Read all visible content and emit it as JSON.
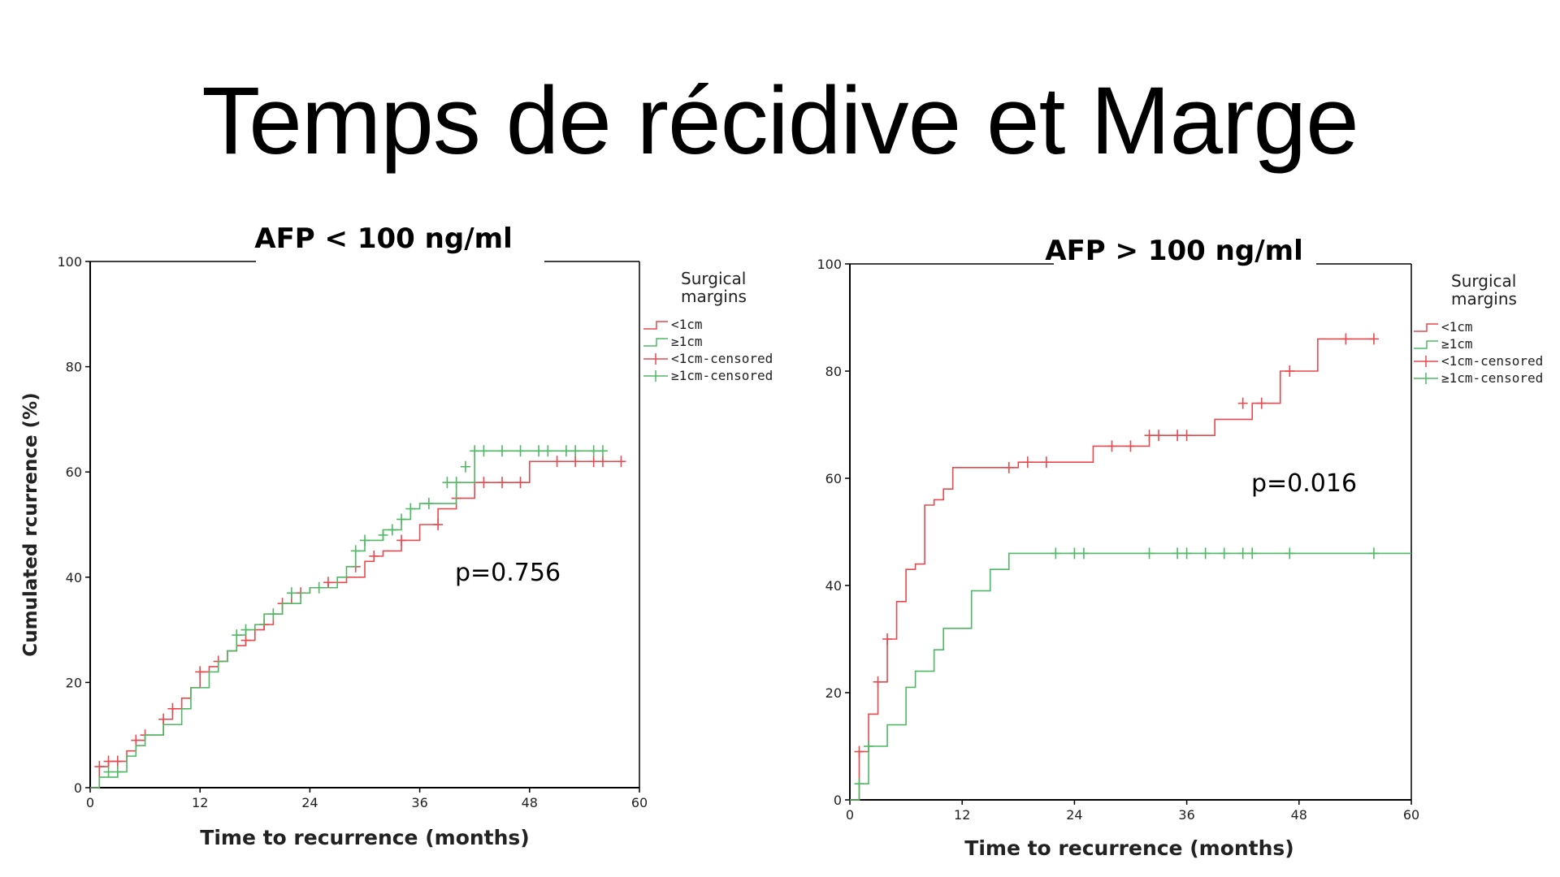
{
  "slide": {
    "title": "Temps de récidive et Marge"
  },
  "colors": {
    "lt1cm": "#e8494f",
    "ge1cm": "#4fb865",
    "axis": "#000000"
  },
  "chart_data": [
    {
      "type": "line",
      "step": true,
      "title": "AFP < 100 ng/ml",
      "xlabel": "Time to recurrence (months)",
      "ylabel": "Cumulated rcurrence (%)",
      "xlim": [
        0,
        60
      ],
      "ylim": [
        0,
        100
      ],
      "xticks": [
        0,
        12,
        24,
        36,
        48,
        60
      ],
      "yticks": [
        0,
        20,
        40,
        60,
        80,
        100
      ],
      "legend_title": "Surgical margins",
      "legend_entries": [
        "<1cm",
        "≥1cm",
        "<1cm-censored",
        "≥1cm-censored"
      ],
      "annotation": "p=0.756",
      "series": [
        {
          "name": "<1cm",
          "x": [
            0,
            1,
            2,
            4,
            5,
            6,
            8,
            9,
            10,
            11,
            12,
            13,
            14,
            15,
            16,
            17,
            18,
            19,
            20,
            21,
            22,
            23,
            24,
            26,
            28,
            30,
            31,
            32,
            34,
            36,
            38,
            40,
            42,
            48,
            58
          ],
          "y": [
            0,
            4,
            5,
            7,
            9,
            10,
            13,
            15,
            17,
            19,
            22,
            23,
            24,
            26,
            27,
            28,
            30,
            31,
            33,
            35,
            37,
            37,
            38,
            39,
            40,
            43,
            44,
            45,
            47,
            50,
            53,
            55,
            58,
            62,
            62
          ],
          "censored_x": [
            1,
            2,
            3,
            5,
            6,
            8,
            9,
            12,
            14,
            17,
            19,
            21,
            23,
            26,
            29,
            31,
            34,
            38,
            40,
            43,
            45,
            47,
            51,
            53,
            55,
            56,
            58
          ],
          "censored_y": [
            4,
            5,
            5,
            9,
            10,
            13,
            15,
            22,
            24,
            28,
            31,
            35,
            37,
            39,
            42,
            44,
            47,
            50,
            55,
            58,
            58,
            58,
            62,
            62,
            62,
            62,
            62
          ]
        },
        {
          "name": "≥1cm",
          "x": [
            0,
            1,
            3,
            4,
            5,
            6,
            8,
            10,
            11,
            13,
            14,
            15,
            16,
            17,
            18,
            19,
            21,
            23,
            24,
            27,
            28,
            29,
            30,
            32,
            34,
            35,
            36,
            38,
            40,
            42,
            56
          ],
          "y": [
            0,
            2,
            3,
            6,
            8,
            10,
            12,
            15,
            19,
            22,
            24,
            26,
            29,
            30,
            31,
            33,
            35,
            37,
            38,
            40,
            42,
            45,
            47,
            49,
            51,
            53,
            54,
            54,
            58,
            64,
            64
          ],
          "censored_x": [
            2,
            3,
            16,
            17,
            20,
            22,
            25,
            29,
            30,
            32,
            33,
            34,
            35,
            37,
            39,
            40,
            41,
            42,
            43,
            45,
            47,
            49,
            50,
            52,
            53,
            55,
            56
          ],
          "censored_y": [
            3,
            3,
            29,
            30,
            33,
            37,
            38,
            45,
            47,
            48,
            49,
            51,
            53,
            54,
            58,
            58,
            61,
            64,
            64,
            64,
            64,
            64,
            64,
            64,
            64,
            64,
            64
          ]
        }
      ]
    },
    {
      "type": "line",
      "step": true,
      "title": "AFP > 100 ng/ml",
      "xlabel": "Time to recurrence (months)",
      "ylabel": "",
      "xlim": [
        0,
        60
      ],
      "ylim": [
        0,
        100
      ],
      "xticks": [
        0,
        12,
        24,
        36,
        48,
        60
      ],
      "yticks": [
        0,
        20,
        40,
        60,
        80,
        100
      ],
      "legend_title": "Surgical margins",
      "legend_entries": [
        "<1cm",
        "≥1cm",
        "<1cm-censored",
        "≥1cm-censored"
      ],
      "annotation": "p=0.016",
      "series": [
        {
          "name": "<1cm",
          "x": [
            0,
            1,
            2,
            3,
            4,
            5,
            6,
            7,
            8,
            9,
            10,
            11,
            13,
            18,
            26,
            32,
            39,
            43,
            46,
            50,
            56
          ],
          "y": [
            0,
            9,
            16,
            22,
            30,
            37,
            43,
            44,
            55,
            56,
            58,
            62,
            62,
            63,
            66,
            68,
            71,
            74,
            80,
            86,
            86
          ],
          "censored_x": [
            1,
            3,
            4,
            17,
            19,
            21,
            28,
            30,
            32,
            33,
            35,
            36,
            42,
            44,
            47,
            53,
            56
          ],
          "censored_y": [
            9,
            22,
            30,
            62,
            63,
            63,
            66,
            66,
            68,
            68,
            68,
            68,
            74,
            74,
            80,
            86,
            86
          ]
        },
        {
          "name": "≥1cm",
          "x": [
            0,
            1,
            2,
            4,
            6,
            7,
            9,
            10,
            13,
            15,
            17,
            60
          ],
          "y": [
            0,
            3,
            10,
            14,
            21,
            24,
            28,
            32,
            39,
            43,
            46,
            46
          ],
          "censored_x": [
            1,
            2,
            22,
            24,
            25,
            32,
            35,
            36,
            38,
            40,
            42,
            43,
            47,
            56
          ],
          "censored_y": [
            3,
            10,
            46,
            46,
            46,
            46,
            46,
            46,
            46,
            46,
            46,
            46,
            46,
            46
          ]
        }
      ]
    }
  ]
}
